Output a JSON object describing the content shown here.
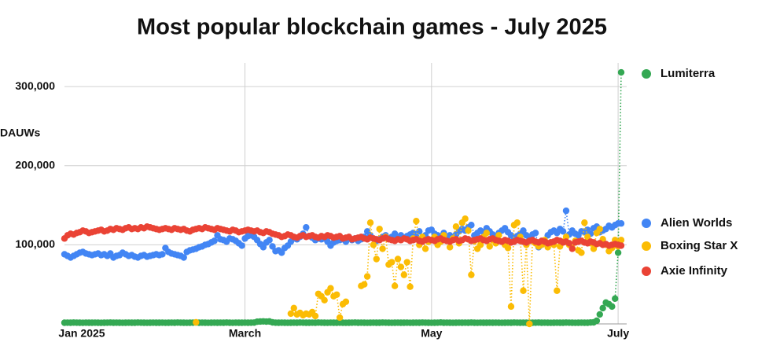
{
  "chart_data": {
    "type": "line",
    "title": "Most popular blockchain games - July 2025",
    "y_label": "DAUWs",
    "categories": [
      "Jan 2025",
      null,
      null,
      null,
      null,
      null,
      null,
      null,
      null,
      null,
      null,
      null,
      null,
      null,
      null,
      null,
      null,
      null,
      null,
      null,
      null,
      null,
      null,
      null,
      null,
      null,
      null,
      null,
      null,
      null,
      null,
      null,
      null,
      null,
      null,
      null,
      null,
      null,
      null,
      null,
      null,
      null,
      null,
      null,
      null,
      null,
      null,
      null,
      null,
      null,
      null,
      null,
      null,
      null,
      null,
      null,
      null,
      null,
      null,
      "March",
      null,
      null,
      null,
      null,
      null,
      null,
      null,
      null,
      null,
      null,
      null,
      null,
      null,
      null,
      null,
      null,
      null,
      null,
      null,
      null,
      null,
      null,
      null,
      null,
      null,
      null,
      null,
      null,
      null,
      null,
      null,
      null,
      null,
      null,
      null,
      null,
      null,
      null,
      null,
      null,
      null,
      null,
      null,
      null,
      null,
      null,
      null,
      null,
      null,
      null,
      null,
      null,
      null,
      null,
      null,
      null,
      null,
      null,
      null,
      null,
      "May",
      null,
      null,
      null,
      null,
      null,
      null,
      null,
      null,
      null,
      null,
      null,
      null,
      null,
      null,
      null,
      null,
      null,
      null,
      null,
      null,
      null,
      null,
      null,
      null,
      null,
      null,
      null,
      null,
      null,
      null,
      null,
      null,
      null,
      null,
      null,
      null,
      null,
      null,
      null,
      null,
      null,
      null,
      null,
      null,
      null,
      null,
      null,
      null,
      null,
      null,
      null,
      null,
      null,
      null,
      null,
      null,
      null,
      null,
      null,
      null,
      "July",
      null
    ],
    "series": [
      {
        "name": "Lumiterra",
        "color": "#34a853",
        "values": [
          1500,
          1600,
          1500,
          1700,
          1600,
          1500,
          1400,
          1600,
          1500,
          1500,
          1600,
          1500,
          1400,
          1500,
          1600,
          1700,
          1500,
          1600,
          1500,
          1400,
          1500,
          1600,
          1500,
          1500,
          1700,
          1600,
          1500,
          1400,
          1500,
          1600,
          1500,
          1500,
          1600,
          1400,
          1500,
          1600,
          1500,
          1700,
          1600,
          1500,
          1400,
          1500,
          1600,
          1800,
          1500,
          1600,
          1500,
          1400,
          1500,
          1600,
          1500,
          1600,
          1500,
          1700,
          1500,
          1400,
          1600,
          1500,
          1500,
          1600,
          1500,
          1600,
          1700,
          2800,
          3000,
          3200,
          2900,
          3100,
          2000,
          1600,
          1500,
          1600,
          1500,
          1400,
          1500,
          1600,
          1500,
          1700,
          1600,
          1500,
          1500,
          1600,
          1500,
          1700,
          1600,
          1500,
          1400,
          1600,
          1500,
          1500,
          1600,
          1500,
          1400,
          1500,
          1600,
          1700,
          1500,
          1600,
          1500,
          1400,
          1500,
          1600,
          1500,
          1500,
          1700,
          1600,
          1500,
          1400,
          1500,
          1600,
          1500,
          1500,
          1600,
          1400,
          1500,
          1600,
          1500,
          1700,
          1600,
          1500,
          1400,
          1500,
          1600,
          1800,
          1500,
          1600,
          1500,
          1400,
          1500,
          1600,
          1500,
          1600,
          1500,
          1700,
          1500,
          1400,
          1600,
          1500,
          1500,
          1600,
          1500,
          1600,
          1500,
          1400,
          1500,
          1600,
          1500,
          1700,
          1600,
          1500,
          1600,
          1500,
          1400,
          1500,
          1600,
          1700,
          1500,
          1600,
          1500,
          1400,
          1500,
          1600,
          1500,
          1500,
          1700,
          1600,
          1500,
          1400,
          1500,
          1600,
          1500,
          1500,
          1800,
          2000,
          4000,
          12000,
          20000,
          27000,
          25000,
          22000,
          32000,
          90000,
          318000
        ]
      },
      {
        "name": "Alien Worlds",
        "color": "#4285f4",
        "values": [
          88000,
          86000,
          84000,
          86000,
          88000,
          90000,
          91000,
          89000,
          88000,
          87000,
          88000,
          89000,
          87000,
          88000,
          86000,
          89000,
          84000,
          86000,
          87000,
          90000,
          88000,
          86000,
          87000,
          85000,
          84000,
          86000,
          87000,
          85000,
          86000,
          87000,
          88000,
          87000,
          88000,
          96000,
          91000,
          89000,
          88000,
          87000,
          86000,
          84000,
          91000,
          93000,
          94000,
          95000,
          97000,
          98000,
          100000,
          101000,
          103000,
          105000,
          112000,
          107000,
          106000,
          104000,
          108000,
          107000,
          105000,
          102000,
          99000,
          108000,
          111000,
          112000,
          110000,
          106000,
          101000,
          97000,
          103000,
          106000,
          98000,
          92000,
          93000,
          90000,
          96000,
          99000,
          104000,
          108000,
          107000,
          110000,
          114000,
          122000,
          111000,
          109000,
          106000,
          108000,
          107000,
          108000,
          104000,
          99000,
          103000,
          105000,
          106000,
          107000,
          104000,
          109000,
          106000,
          108000,
          105000,
          107000,
          110000,
          117000,
          112000,
          108000,
          105000,
          107000,
          110000,
          112000,
          108000,
          110000,
          114000,
          109000,
          112000,
          108000,
          111000,
          113000,
          115000,
          110000,
          117000,
          109000,
          112000,
          118000,
          119000,
          114000,
          112000,
          110000,
          115000,
          108000,
          112000,
          109000,
          113000,
          117000,
          120000,
          118000,
          122000,
          125000,
          112000,
          115000,
          118000,
          116000,
          121000,
          117000,
          113000,
          110000,
          115000,
          118000,
          121000,
          116000,
          112000,
          108000,
          111000,
          114000,
          118000,
          112000,
          109000,
          113000,
          115000,
          97000,
          100000,
          104000,
          112000,
          116000,
          118000,
          115000,
          120000,
          117000,
          143000,
          113000,
          118000,
          114000,
          112000,
          117000,
          116000,
          119000,
          114000,
          121000,
          123000,
          116000,
          118000,
          120000,
          124000,
          122000,
          125000,
          127000,
          127000
        ]
      },
      {
        "name": "Boxing Star X",
        "color": "#fbbc04",
        "values": [
          null,
          null,
          null,
          null,
          null,
          null,
          null,
          null,
          null,
          null,
          null,
          null,
          null,
          null,
          null,
          null,
          null,
          null,
          null,
          null,
          null,
          null,
          null,
          null,
          null,
          null,
          null,
          null,
          null,
          null,
          null,
          null,
          null,
          null,
          null,
          null,
          null,
          null,
          null,
          null,
          null,
          null,
          null,
          2000,
          null,
          null,
          null,
          null,
          null,
          null,
          null,
          null,
          null,
          null,
          null,
          null,
          null,
          null,
          null,
          null,
          null,
          null,
          null,
          null,
          null,
          null,
          null,
          null,
          null,
          null,
          null,
          null,
          null,
          null,
          13000,
          20000,
          12000,
          14000,
          11000,
          13000,
          12000,
          15000,
          10000,
          38000,
          35000,
          30000,
          40000,
          45000,
          35000,
          37000,
          8000,
          25000,
          28000,
          null,
          null,
          null,
          null,
          48000,
          50000,
          60000,
          128000,
          100000,
          82000,
          120000,
          95000,
          110000,
          75000,
          78000,
          48000,
          82000,
          72000,
          62000,
          78000,
          47000,
          108000,
          130000,
          100000,
          110000,
          95000,
          104000,
          106000,
          110000,
          100000,
          104000,
          112000,
          105000,
          97000,
          108000,
          123000,
          102000,
          128000,
          133000,
          118000,
          62000,
          105000,
          95000,
          100000,
          110000,
          115000,
          98000,
          106000,
          102000,
          112000,
          104000,
          100000,
          96000,
          22000,
          125000,
          128000,
          110000,
          42000,
          100000,
          0,
          105000,
          102000,
          98000,
          100000,
          106000,
          97000,
          103000,
          100000,
          42000,
          98000,
          104000,
          110000,
          100000,
          96000,
          105000,
          93000,
          90000,
          128000,
          110000,
          102000,
          95000,
          115000,
          120000,
          107000,
          100000,
          92000,
          96000,
          106000,
          98000,
          106000
        ]
      },
      {
        "name": "Axie Infinity",
        "color": "#ea4335",
        "values": [
          108000,
          112000,
          114000,
          113000,
          115000,
          116000,
          118000,
          117000,
          115000,
          116000,
          117000,
          118000,
          119000,
          117000,
          118000,
          120000,
          119000,
          121000,
          120000,
          119000,
          121000,
          122000,
          120000,
          121000,
          120000,
          122000,
          121000,
          123000,
          122000,
          121000,
          120000,
          119000,
          120000,
          121000,
          120000,
          119000,
          121000,
          120000,
          119000,
          120000,
          118000,
          117000,
          119000,
          120000,
          121000,
          120000,
          122000,
          121000,
          120000,
          119000,
          121000,
          120000,
          119000,
          118000,
          117000,
          119000,
          118000,
          116000,
          117000,
          118000,
          119000,
          118000,
          117000,
          118000,
          116000,
          115000,
          117000,
          116000,
          114000,
          113000,
          112000,
          110000,
          111000,
          113000,
          112000,
          110000,
          109000,
          111000,
          112000,
          110000,
          111000,
          112000,
          110000,
          109000,
          111000,
          110000,
          112000,
          111000,
          109000,
          110000,
          111000,
          108000,
          109000,
          110000,
          107000,
          108000,
          109000,
          110000,
          108000,
          107000,
          109000,
          108000,
          107000,
          106000,
          108000,
          109000,
          107000,
          106000,
          105000,
          107000,
          106000,
          108000,
          107000,
          105000,
          106000,
          107000,
          105000,
          104000,
          106000,
          107000,
          106000,
          105000,
          107000,
          108000,
          106000,
          105000,
          104000,
          106000,
          107000,
          105000,
          106000,
          108000,
          107000,
          105000,
          106000,
          107000,
          108000,
          106000,
          105000,
          107000,
          108000,
          106000,
          105000,
          104000,
          106000,
          105000,
          103000,
          104000,
          106000,
          105000,
          104000,
          103000,
          105000,
          106000,
          104000,
          103000,
          105000,
          104000,
          102000,
          103000,
          104000,
          106000,
          105000,
          103000,
          104000,
          102000,
          95000,
          103000,
          104000,
          105000,
          103000,
          102000,
          104000,
          103000,
          101000,
          102000,
          100000,
          101000,
          99000,
          100000,
          101000,
          100000,
          99000
        ]
      }
    ],
    "ylim": [
      0,
      330000
    ],
    "yticks": [
      {
        "value": 100000,
        "label": "100,000"
      },
      {
        "value": 200000,
        "label": "200,000"
      },
      {
        "value": 300000,
        "label": "300,000"
      }
    ],
    "grid": true
  }
}
